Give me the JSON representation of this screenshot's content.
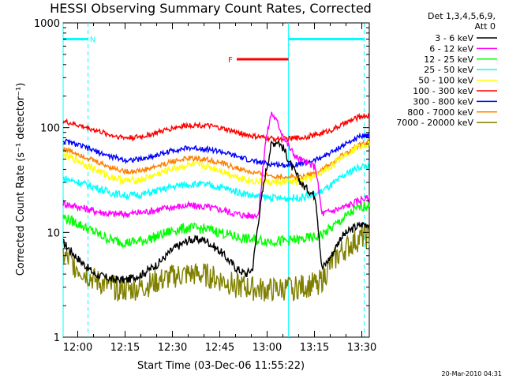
{
  "chart_data": {
    "type": "line",
    "title": "HESSI Observing Summary Count Rates, Corrected",
    "xlabel": "Start Time (03-Dec-06 11:55:22)",
    "ylabel": "Corrected Count Rate (s⁻¹ detector⁻¹)",
    "yscale": "log",
    "ylim": [
      1,
      1000
    ],
    "xlim_minutes": [
      0,
      97
    ],
    "x_ticks": [
      {
        "label": "12:00",
        "minutes": 4.63
      },
      {
        "label": "12:15",
        "minutes": 19.63
      },
      {
        "label": "12:30",
        "minutes": 34.63
      },
      {
        "label": "12:45",
        "minutes": 49.63
      },
      {
        "label": "13:00",
        "minutes": 64.63
      },
      {
        "label": "13:15",
        "minutes": 79.63
      },
      {
        "label": "13:30",
        "minutes": 94.63
      }
    ],
    "y_ticks": [
      {
        "label": "1",
        "value": 1
      },
      {
        "label": "10",
        "value": 10
      },
      {
        "label": "100",
        "value": 100
      },
      {
        "label": "1000",
        "value": 1000
      }
    ],
    "legend": {
      "placement": "right",
      "header": [
        "Det 1,3,4,5,6,9,",
        "Att 0"
      ]
    },
    "series": [
      {
        "name": "3 - 6 keV",
        "color": "#000000",
        "x": [
          0,
          5,
          10,
          15,
          20,
          25,
          30,
          35,
          40,
          45,
          50,
          55,
          58,
          60,
          62,
          64,
          66,
          68,
          70,
          72,
          74,
          76,
          78,
          80,
          82,
          85,
          88,
          92,
          95,
          97
        ],
        "y": [
          8,
          5.5,
          4,
          3.6,
          3.5,
          4,
          5,
          7,
          8.5,
          8.5,
          6.5,
          4.5,
          4,
          4.5,
          14,
          35,
          70,
          75,
          62,
          45,
          35,
          28,
          25,
          22,
          4.5,
          6,
          9,
          11,
          12,
          12
        ]
      },
      {
        "name": "6 - 12 keV",
        "color": "#ff00ff",
        "x": [
          0,
          5,
          10,
          15,
          20,
          25,
          30,
          35,
          40,
          45,
          50,
          55,
          58,
          60,
          62,
          64,
          66,
          68,
          70,
          72,
          74,
          76,
          78,
          80,
          82,
          85,
          88,
          92,
          95,
          97
        ],
        "y": [
          19,
          17.5,
          16,
          15,
          15,
          15.5,
          16.5,
          17.5,
          18,
          17.5,
          16.5,
          15,
          14.5,
          14.5,
          15,
          70,
          140,
          110,
          80,
          62,
          52,
          48,
          45,
          42,
          15,
          16,
          17,
          19,
          21,
          21
        ]
      },
      {
        "name": "12 - 25 keV",
        "color": "#00ff00",
        "x": [
          0,
          5,
          10,
          15,
          20,
          25,
          30,
          35,
          40,
          45,
          50,
          55,
          60,
          65,
          70,
          75,
          80,
          82,
          85,
          88,
          92,
          95,
          97
        ],
        "y": [
          14,
          12,
          10,
          8.5,
          8,
          8.3,
          9.2,
          10.5,
          11,
          10.8,
          10,
          9,
          8.5,
          8.3,
          8.3,
          8.5,
          9,
          9.5,
          11,
          13,
          16,
          18,
          18
        ]
      },
      {
        "name": "25 - 50 keV",
        "color": "#00ffff",
        "x": [
          0,
          5,
          10,
          15,
          20,
          25,
          30,
          35,
          40,
          45,
          50,
          55,
          60,
          65,
          70,
          75,
          80,
          85,
          88,
          92,
          95,
          97
        ],
        "y": [
          33,
          30,
          27,
          24,
          22.5,
          23,
          25,
          27.5,
          29,
          28.5,
          27,
          24.5,
          22.5,
          21.5,
          21,
          21.5,
          23,
          28,
          33,
          40,
          43,
          43
        ]
      },
      {
        "name": "50 - 100 keV",
        "color": "#ffff00",
        "x": [
          0,
          5,
          10,
          15,
          20,
          25,
          30,
          35,
          40,
          45,
          50,
          55,
          60,
          65,
          70,
          75,
          80,
          85,
          88,
          92,
          95,
          97
        ],
        "y": [
          55,
          48,
          40,
          34,
          31,
          32,
          36,
          41,
          44,
          43,
          39,
          34,
          31,
          30,
          30,
          31,
          34,
          43,
          52,
          62,
          70,
          70
        ]
      },
      {
        "name": "100 - 300 keV",
        "color": "#ff0000",
        "x": [
          0,
          5,
          10,
          15,
          20,
          25,
          30,
          35,
          40,
          45,
          50,
          55,
          60,
          65,
          70,
          75,
          80,
          85,
          88,
          92,
          95,
          97
        ],
        "y": [
          115,
          105,
          95,
          85,
          80,
          82,
          90,
          100,
          106,
          105,
          99,
          90,
          83,
          79,
          78,
          80,
          85,
          95,
          105,
          120,
          130,
          130
        ]
      },
      {
        "name": "300 - 800 keV",
        "color": "#0000ff",
        "x": [
          0,
          5,
          10,
          15,
          20,
          25,
          30,
          35,
          40,
          45,
          50,
          55,
          60,
          65,
          70,
          75,
          80,
          85,
          88,
          92,
          95,
          97
        ],
        "y": [
          75,
          68,
          60,
          53,
          49,
          50,
          55,
          61,
          64,
          63,
          59,
          53,
          48,
          45,
          44,
          45,
          49,
          58,
          66,
          76,
          85,
          85
        ]
      },
      {
        "name": "800 - 7000 keV",
        "color": "#ff8000",
        "x": [
          0,
          5,
          10,
          15,
          20,
          25,
          30,
          35,
          40,
          45,
          50,
          55,
          60,
          65,
          70,
          75,
          80,
          85,
          88,
          92,
          95,
          97
        ],
        "y": [
          63,
          56,
          48,
          42,
          38,
          39,
          43,
          48,
          51,
          50,
          46,
          41,
          37,
          35,
          34,
          34,
          37,
          45,
          53,
          63,
          72,
          72
        ]
      },
      {
        "name": "7000 - 20000 keV",
        "color": "#808000",
        "x": [
          0,
          5,
          10,
          15,
          20,
          25,
          30,
          35,
          40,
          45,
          50,
          55,
          60,
          65,
          70,
          75,
          80,
          82,
          85,
          88,
          92,
          95,
          97
        ],
        "y": [
          6,
          4.5,
          3.5,
          3,
          2.8,
          3,
          3.4,
          3.8,
          4,
          3.9,
          3.5,
          3.1,
          2.9,
          2.8,
          2.9,
          3,
          3.2,
          3.5,
          5,
          6.5,
          8,
          9,
          9
        ]
      }
    ],
    "intervals": [
      {
        "label": "N",
        "color": "#00ffff",
        "x_start": 0,
        "x_end": 7.9,
        "y": 700
      },
      {
        "label": "F",
        "color": "#ff0000",
        "x_start": 55,
        "x_end": 71.4,
        "y": 450
      },
      {
        "label": "",
        "color": "#00ffff",
        "x_start": 71.4,
        "x_end": 95.4,
        "y": 700
      }
    ],
    "boundaries_minutes": [
      0,
      7.9,
      71.4,
      95.4
    ],
    "footer_stamp": "20-Mar-2010 04:31"
  }
}
